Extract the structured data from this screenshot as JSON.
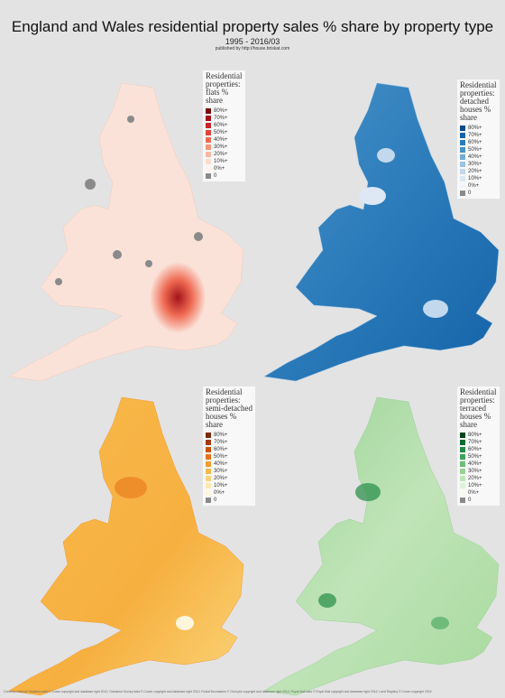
{
  "header": {
    "title": "England and Wales residential property sales % share by property type",
    "subtitle": "1995 - 2016/03",
    "credit": "published by http://house.briskat.com"
  },
  "maps": [
    {
      "legend": {
        "title": [
          "Residential",
          "properties:",
          "flats %",
          "share"
        ],
        "items": [
          {
            "label": "80%+",
            "color": "#7a0a0a"
          },
          {
            "label": "70%+",
            "color": "#a3141a"
          },
          {
            "label": "60%+",
            "color": "#c9252b"
          },
          {
            "label": "50%+",
            "color": "#e0463a"
          },
          {
            "label": "40%+",
            "color": "#ef6a52"
          },
          {
            "label": "30%+",
            "color": "#f79479"
          },
          {
            "label": "20%+",
            "color": "#fbb9a1"
          },
          {
            "label": "10%+",
            "color": "#fddccf"
          },
          {
            "label": "0%+",
            "color": "#fef1eb"
          },
          {
            "label": "0",
            "color": "#8a8a8a"
          }
        ]
      }
    },
    {
      "legend": {
        "title": [
          "Residential",
          "properties:",
          "detached",
          "houses %",
          "share"
        ],
        "items": [
          {
            "label": "80%+",
            "color": "#084a8a"
          },
          {
            "label": "70%+",
            "color": "#1563a8"
          },
          {
            "label": "60%+",
            "color": "#2b7bba"
          },
          {
            "label": "50%+",
            "color": "#4a93c8"
          },
          {
            "label": "40%+",
            "color": "#74acd5"
          },
          {
            "label": "30%+",
            "color": "#9cc3e2"
          },
          {
            "label": "20%+",
            "color": "#c2d8ec"
          },
          {
            "label": "10%+",
            "color": "#dde8f4"
          },
          {
            "label": "0%+",
            "color": "#f1f5fb"
          },
          {
            "label": "0",
            "color": "#8a8a8a"
          }
        ]
      }
    },
    {
      "legend": {
        "title": [
          "Residential",
          "properties:",
          "semi-detached",
          "houses %",
          "share"
        ],
        "items": [
          {
            "label": "80%+",
            "color": "#7a2a04"
          },
          {
            "label": "70%+",
            "color": "#a33a04"
          },
          {
            "label": "60%+",
            "color": "#cc5306"
          },
          {
            "label": "50%+",
            "color": "#e8741a"
          },
          {
            "label": "40%+",
            "color": "#f49a30"
          },
          {
            "label": "30%+",
            "color": "#f8ba4c"
          },
          {
            "label": "20%+",
            "color": "#fbd57a"
          },
          {
            "label": "10%+",
            "color": "#fde9b0"
          },
          {
            "label": "0%+",
            "color": "#fff6dc"
          },
          {
            "label": "0",
            "color": "#8a8a8a"
          }
        ]
      }
    },
    {
      "legend": {
        "title": [
          "Residential",
          "properties:",
          "terraced",
          "houses %",
          "share"
        ],
        "items": [
          {
            "label": "80%+",
            "color": "#00441b"
          },
          {
            "label": "70%+",
            "color": "#0d6b2e"
          },
          {
            "label": "60%+",
            "color": "#238b45"
          },
          {
            "label": "50%+",
            "color": "#41a35a"
          },
          {
            "label": "40%+",
            "color": "#6cbd76"
          },
          {
            "label": "30%+",
            "color": "#98d294"
          },
          {
            "label": "20%+",
            "color": "#c0e4b8"
          },
          {
            "label": "10%+",
            "color": "#def2d8"
          },
          {
            "label": "0%+",
            "color": "#f3faf0"
          },
          {
            "label": "0",
            "color": "#8a8a8a"
          }
        ]
      }
    }
  ],
  "footer": "Contains National Statistics data © Crown copyright and database right 2012; Ordnance Survey data © Crown copyright and database right 2012; Postal Boundaries © GeoLytix copyright and database right 2012; Royal Mail data © Royal Mail copyright and database right 2012; Land Registry © Crown copyright 2016"
}
